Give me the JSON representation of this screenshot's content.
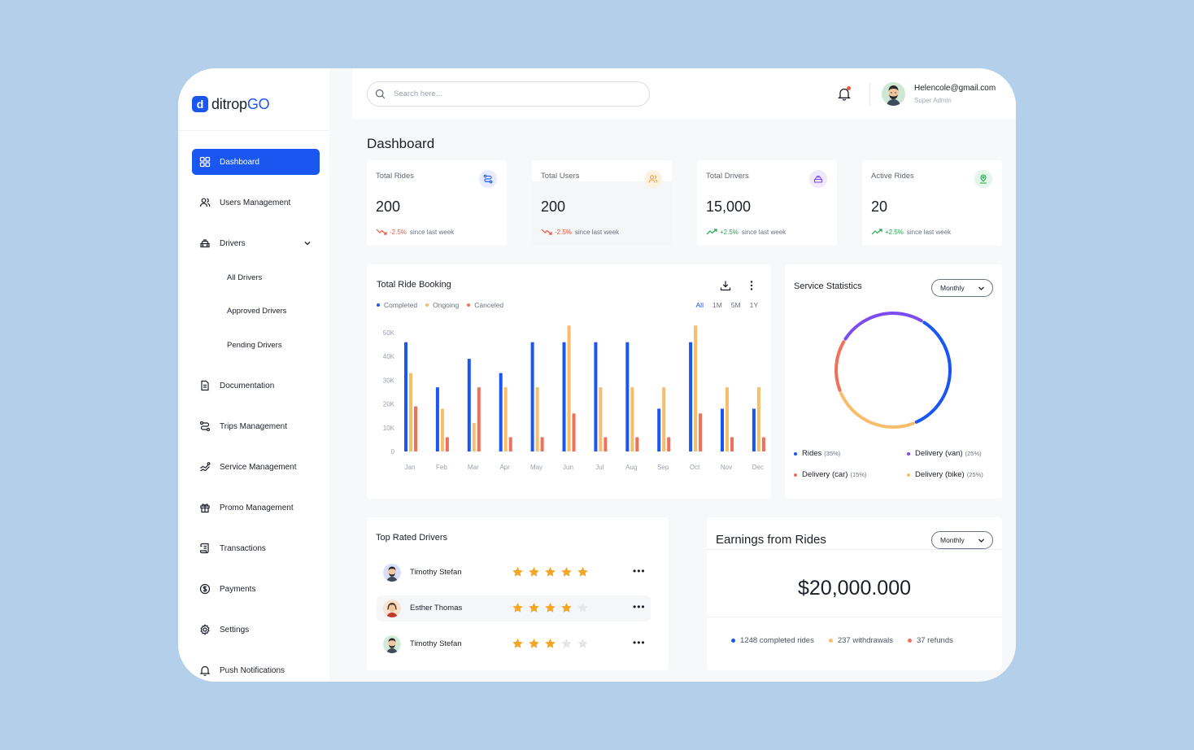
{
  "colors": {
    "accent": "#1a56f0",
    "completed": "#1a56f0",
    "ongoing": "#f7bd6b",
    "canceled": "#f0705a",
    "van": "#7d4cf0",
    "up": "#1fa64a",
    "down": "#f0533b"
  },
  "brand": {
    "mark": "d",
    "name_prefix": "ditrop",
    "name_suffix": "GO"
  },
  "sidebar": {
    "items": [
      {
        "label": "Dashboard",
        "icon": "grid-icon",
        "active": true
      },
      {
        "label": "Users Management",
        "icon": "users-icon"
      },
      {
        "label": "Drivers",
        "icon": "car-icon",
        "expanded": true
      },
      {
        "label": "Documentation",
        "icon": "document-icon"
      },
      {
        "label": "Trips Management",
        "icon": "route-icon"
      },
      {
        "label": "Service Management",
        "icon": "service-icon"
      },
      {
        "label": "Promo Management",
        "icon": "gift-icon"
      },
      {
        "label": "Transactions",
        "icon": "receipt-icon"
      },
      {
        "label": "Payments",
        "icon": "dollar-icon"
      },
      {
        "label": "Settings",
        "icon": "gear-icon"
      },
      {
        "label": "Push Notifications",
        "icon": "bell-icon"
      }
    ],
    "driver_subitems": [
      "All Drivers",
      "Approved Drivers",
      "Pending Drivers"
    ]
  },
  "header": {
    "search_placeholder": "Search here...",
    "user_email": "Helencole@gmail.com",
    "user_role": "Super Admin"
  },
  "page": {
    "title": "Dashboard"
  },
  "stats": [
    {
      "label": "Total Rides",
      "value": "200",
      "change": "-2.5%",
      "direction": "down",
      "note": "since last week",
      "icon": "route-icon"
    },
    {
      "label": "Total Users",
      "value": "200",
      "change": "-2.5%",
      "direction": "down",
      "note": "since last week",
      "icon": "users-icon"
    },
    {
      "label": "Total Drivers",
      "value": "15,000",
      "change": "+2.5%",
      "direction": "up",
      "note": "since last week",
      "icon": "car-icon"
    },
    {
      "label": "Active Rides",
      "value": "20",
      "change": "+2.5%",
      "direction": "up",
      "note": "since last week",
      "icon": "location-icon"
    }
  ],
  "booking": {
    "title": "Total Ride Booking",
    "legend": [
      "Completed",
      "Ongoing",
      "Canceled"
    ],
    "ranges": [
      "All",
      "1M",
      "5M",
      "1Y"
    ],
    "selected_range": "All"
  },
  "chart_data": {
    "type": "bar",
    "categories": [
      "Jan",
      "Feb",
      "Mar",
      "Apr",
      "May",
      "Jun",
      "Jul",
      "Aug",
      "Sep",
      "Oct",
      "Nov",
      "Dec"
    ],
    "series": [
      {
        "name": "Completed",
        "values": [
          46000,
          27000,
          39000,
          33000,
          46000,
          46000,
          46000,
          46000,
          18000,
          46000,
          18000,
          18000
        ]
      },
      {
        "name": "Ongoing",
        "values": [
          33000,
          18000,
          12000,
          27000,
          27000,
          53000,
          27000,
          27000,
          27000,
          53000,
          27000,
          27000
        ]
      },
      {
        "name": "Canceled",
        "values": [
          19000,
          6000,
          27000,
          6000,
          6000,
          16000,
          6000,
          6000,
          6000,
          16000,
          6000,
          6000
        ]
      }
    ],
    "y_ticks": [
      "50K",
      "40K",
      "30K",
      "20K",
      "10K",
      "0"
    ],
    "ylim": [
      0,
      50000
    ],
    "grid": false,
    "legend_position": "top-left"
  },
  "service": {
    "title": "Service Statistics",
    "period": "Monthly",
    "slices": [
      {
        "label": "Rides",
        "pct": "(35%)",
        "value": 35,
        "color": "#1a56f0"
      },
      {
        "label": "Delivery (van)",
        "pct": "(25%)",
        "value": 25,
        "color": "#7d4cf0"
      },
      {
        "label": "Delivery (car)",
        "pct": "(15%)",
        "value": 15,
        "color": "#f0705a"
      },
      {
        "label": "Delivery (bike)",
        "pct": "(25%)",
        "value": 25,
        "color": "#f7bd6b"
      }
    ]
  },
  "top_drivers": {
    "title": "Top Rated Drivers",
    "rows": [
      {
        "name": "Timothy Stefan",
        "rating": 5
      },
      {
        "name": "Esther Thomas",
        "rating": 4
      },
      {
        "name": "Timothy Stefan",
        "rating": 3
      }
    ]
  },
  "earnings": {
    "title": "Earnings from Rides",
    "period": "Monthly",
    "amount": "$20,000.000",
    "stats": [
      {
        "label": "1248 completed rides",
        "color": "#1a56f0"
      },
      {
        "label": "237 withdrawals",
        "color": "#f7bd6b"
      },
      {
        "label": "37 refunds",
        "color": "#f0705a"
      }
    ]
  }
}
